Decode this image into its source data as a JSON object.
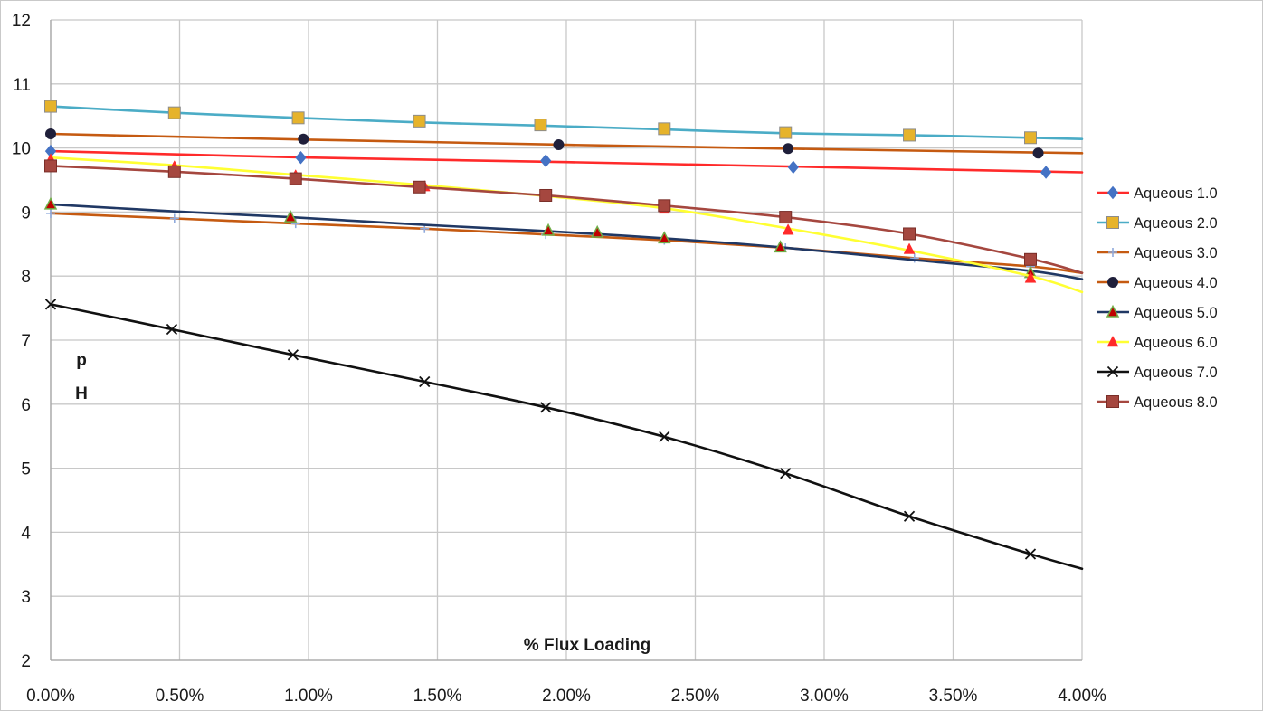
{
  "chart_data": {
    "type": "line",
    "title": "",
    "xlabel": "% Flux Loading",
    "ylabel_lines": [
      "p",
      "H"
    ],
    "x_ticks": [
      "0.00%",
      "0.50%",
      "1.00%",
      "1.50%",
      "2.00%",
      "2.50%",
      "3.00%",
      "3.50%",
      "4.00%"
    ],
    "y_ticks": [
      "2",
      "3",
      "4",
      "5",
      "6",
      "7",
      "8",
      "9",
      "10",
      "11",
      "12"
    ],
    "xlim": [
      0,
      4
    ],
    "ylim": [
      2,
      12
    ],
    "grid": true,
    "legend_position": "right",
    "series": [
      {
        "name": "Aqueous 1.0",
        "color": "#ff2a2a",
        "marker": "diamond",
        "marker_color": "#4472c4",
        "line": [
          [
            0.0,
            9.95
          ],
          [
            1.0,
            9.85
          ],
          [
            2.0,
            9.78
          ],
          [
            3.0,
            9.7
          ],
          [
            4.0,
            9.62
          ]
        ],
        "points": [
          [
            0.0,
            9.95
          ],
          [
            0.97,
            9.85
          ],
          [
            1.92,
            9.8
          ],
          [
            2.88,
            9.7
          ],
          [
            3.86,
            9.62
          ]
        ]
      },
      {
        "name": "Aqueous 2.0",
        "color": "#4bacc6",
        "marker": "square",
        "marker_color": "#e6b32b",
        "line": [
          [
            0.0,
            10.65
          ],
          [
            0.48,
            10.55
          ],
          [
            0.96,
            10.47
          ],
          [
            1.43,
            10.4
          ],
          [
            1.9,
            10.35
          ],
          [
            2.38,
            10.29
          ],
          [
            2.85,
            10.23
          ],
          [
            3.33,
            10.2
          ],
          [
            3.8,
            10.16
          ],
          [
            4.0,
            10.14
          ]
        ],
        "points": [
          [
            0.0,
            10.65
          ],
          [
            0.48,
            10.55
          ],
          [
            0.96,
            10.47
          ],
          [
            1.43,
            10.42
          ],
          [
            1.9,
            10.36
          ],
          [
            2.38,
            10.3
          ],
          [
            2.85,
            10.24
          ],
          [
            3.33,
            10.2
          ],
          [
            3.8,
            10.16
          ]
        ]
      },
      {
        "name": "Aqueous 3.0",
        "color": "#c55a11",
        "marker": "plus",
        "marker_color": "#8faadc",
        "line": [
          [
            0.0,
            8.98
          ],
          [
            0.48,
            8.9
          ],
          [
            0.95,
            8.82
          ],
          [
            1.45,
            8.74
          ],
          [
            1.92,
            8.65
          ],
          [
            2.38,
            8.56
          ],
          [
            2.85,
            8.44
          ],
          [
            3.35,
            8.28
          ],
          [
            3.8,
            8.15
          ],
          [
            4.0,
            8.05
          ]
        ],
        "points": [
          [
            0.0,
            8.98
          ],
          [
            0.48,
            8.9
          ],
          [
            0.95,
            8.82
          ],
          [
            1.45,
            8.74
          ],
          [
            1.92,
            8.65
          ],
          [
            2.38,
            8.56
          ],
          [
            2.85,
            8.44
          ],
          [
            3.35,
            8.28
          ],
          [
            3.8,
            8.15
          ]
        ]
      },
      {
        "name": "Aqueous 4.0",
        "color": "#c55a11",
        "marker": "circle",
        "marker_color": "#1f1f3a",
        "line": [
          [
            0.0,
            10.22
          ],
          [
            1.0,
            10.13
          ],
          [
            2.0,
            10.05
          ],
          [
            3.0,
            9.98
          ],
          [
            4.0,
            9.92
          ]
        ],
        "points": [
          [
            0.0,
            10.22
          ],
          [
            0.98,
            10.14
          ],
          [
            1.97,
            10.05
          ],
          [
            2.86,
            9.99
          ],
          [
            3.83,
            9.92
          ]
        ]
      },
      {
        "name": "Aqueous 5.0",
        "color": "#203864",
        "marker": "triangle",
        "marker_color": "#70ad47",
        "marker_fill": "#c00000",
        "line": [
          [
            0.0,
            9.12
          ],
          [
            0.48,
            9.01
          ],
          [
            0.93,
            8.92
          ],
          [
            1.45,
            8.8
          ],
          [
            1.93,
            8.7
          ],
          [
            2.38,
            8.59
          ],
          [
            2.83,
            8.45
          ],
          [
            3.35,
            8.25
          ],
          [
            3.8,
            8.08
          ],
          [
            4.0,
            7.95
          ]
        ],
        "points": [
          [
            0.0,
            9.12
          ],
          [
            0.93,
            8.92
          ],
          [
            1.93,
            8.71
          ],
          [
            2.12,
            8.68
          ],
          [
            2.38,
            8.59
          ],
          [
            2.83,
            8.45
          ],
          [
            3.8,
            8.05
          ]
        ]
      },
      {
        "name": "Aqueous 6.0",
        "color": "#ffff33",
        "marker": "triangle",
        "marker_color": "#ff2a2a",
        "line": [
          [
            0.0,
            9.85
          ],
          [
            0.48,
            9.73
          ],
          [
            0.95,
            9.58
          ],
          [
            1.45,
            9.42
          ],
          [
            1.92,
            9.25
          ],
          [
            2.38,
            9.06
          ],
          [
            2.85,
            8.75
          ],
          [
            3.33,
            8.4
          ],
          [
            3.8,
            8.0
          ],
          [
            4.0,
            7.75
          ]
        ],
        "points": [
          [
            0.0,
            9.82
          ],
          [
            0.48,
            9.71
          ],
          [
            0.95,
            9.57
          ],
          [
            1.45,
            9.4
          ],
          [
            1.92,
            9.25
          ],
          [
            2.38,
            9.05
          ],
          [
            2.86,
            8.72
          ],
          [
            3.33,
            8.42
          ],
          [
            3.8,
            7.97
          ]
        ]
      },
      {
        "name": "Aqueous 7.0",
        "color": "#111111",
        "marker": "x",
        "marker_color": "#111111",
        "line": [
          [
            0.0,
            7.56
          ],
          [
            0.47,
            7.17
          ],
          [
            0.94,
            6.77
          ],
          [
            1.45,
            6.35
          ],
          [
            1.92,
            5.95
          ],
          [
            2.38,
            5.49
          ],
          [
            2.85,
            4.92
          ],
          [
            3.33,
            4.25
          ],
          [
            3.8,
            3.66
          ],
          [
            4.0,
            3.43
          ]
        ],
        "points": [
          [
            0.0,
            7.56
          ],
          [
            0.47,
            7.17
          ],
          [
            0.94,
            6.77
          ],
          [
            1.45,
            6.35
          ],
          [
            1.92,
            5.95
          ],
          [
            2.38,
            5.49
          ],
          [
            2.85,
            4.92
          ],
          [
            3.33,
            4.25
          ],
          [
            3.8,
            3.66
          ]
        ]
      },
      {
        "name": "Aqueous 8.0",
        "color": "#a5473f",
        "marker": "square",
        "marker_color": "#a5473f",
        "line": [
          [
            0.0,
            9.72
          ],
          [
            0.48,
            9.63
          ],
          [
            0.95,
            9.52
          ],
          [
            1.43,
            9.39
          ],
          [
            1.92,
            9.26
          ],
          [
            2.38,
            9.1
          ],
          [
            2.85,
            8.92
          ],
          [
            3.33,
            8.66
          ],
          [
            3.8,
            8.27
          ],
          [
            4.0,
            8.05
          ]
        ],
        "points": [
          [
            0.0,
            9.72
          ],
          [
            0.48,
            9.63
          ],
          [
            0.95,
            9.52
          ],
          [
            1.43,
            9.39
          ],
          [
            1.92,
            9.26
          ],
          [
            2.38,
            9.1
          ],
          [
            2.85,
            8.92
          ],
          [
            3.33,
            8.66
          ],
          [
            3.8,
            8.26
          ]
        ]
      }
    ]
  }
}
